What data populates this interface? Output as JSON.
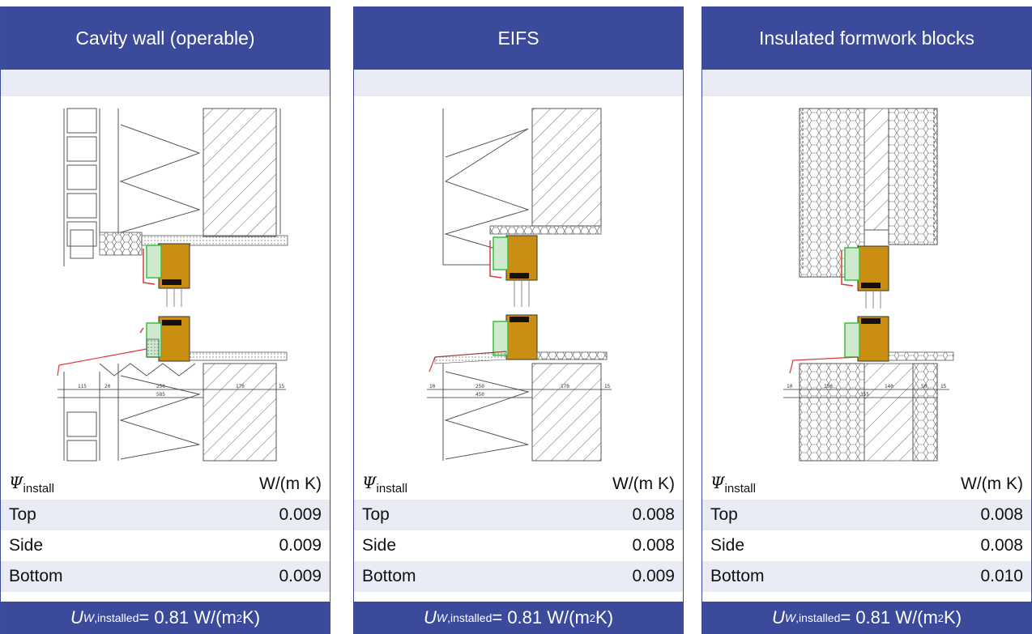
{
  "units": {
    "psi_symbol": "Ψ",
    "psi_subscript": "install",
    "psi_unit": "W/(m K)",
    "u_symbol": "U",
    "u_subscript_w": "W",
    "u_subscript_rest": ",installed",
    "u_value_text": " = 0.81 W/(m",
    "u_exp": "2",
    "u_close": " K)"
  },
  "panels": [
    {
      "title": "Cavity wall (operable)",
      "rows": [
        {
          "label": "Top",
          "value": "0.009"
        },
        {
          "label": "Side",
          "value": "0.009"
        },
        {
          "label": "Bottom",
          "value": "0.009"
        }
      ],
      "dims": [
        "115",
        "20",
        "250",
        "585",
        "170",
        "15"
      ]
    },
    {
      "title": "EIFS",
      "rows": [
        {
          "label": "Top",
          "value": "0.008"
        },
        {
          "label": "Side",
          "value": "0.008"
        },
        {
          "label": "Bottom",
          "value": "0.009"
        }
      ],
      "dims": [
        "10",
        "250",
        "450",
        "170",
        "15"
      ]
    },
    {
      "title": "Insulated formwork blocks",
      "rows": [
        {
          "label": "Top",
          "value": "0.008"
        },
        {
          "label": "Side",
          "value": "0.008"
        },
        {
          "label": "Bottom",
          "value": "0.010"
        }
      ],
      "dims": [
        "10",
        "150",
        "355",
        "140",
        "50",
        "15"
      ]
    }
  ],
  "colors": {
    "header": "#3b4a9b",
    "band": "#e9ebf5",
    "frame_wood": "#c98e12",
    "seal_green": "#3bbf3b",
    "seal_red": "#d63a3a",
    "glass": "#111111"
  }
}
